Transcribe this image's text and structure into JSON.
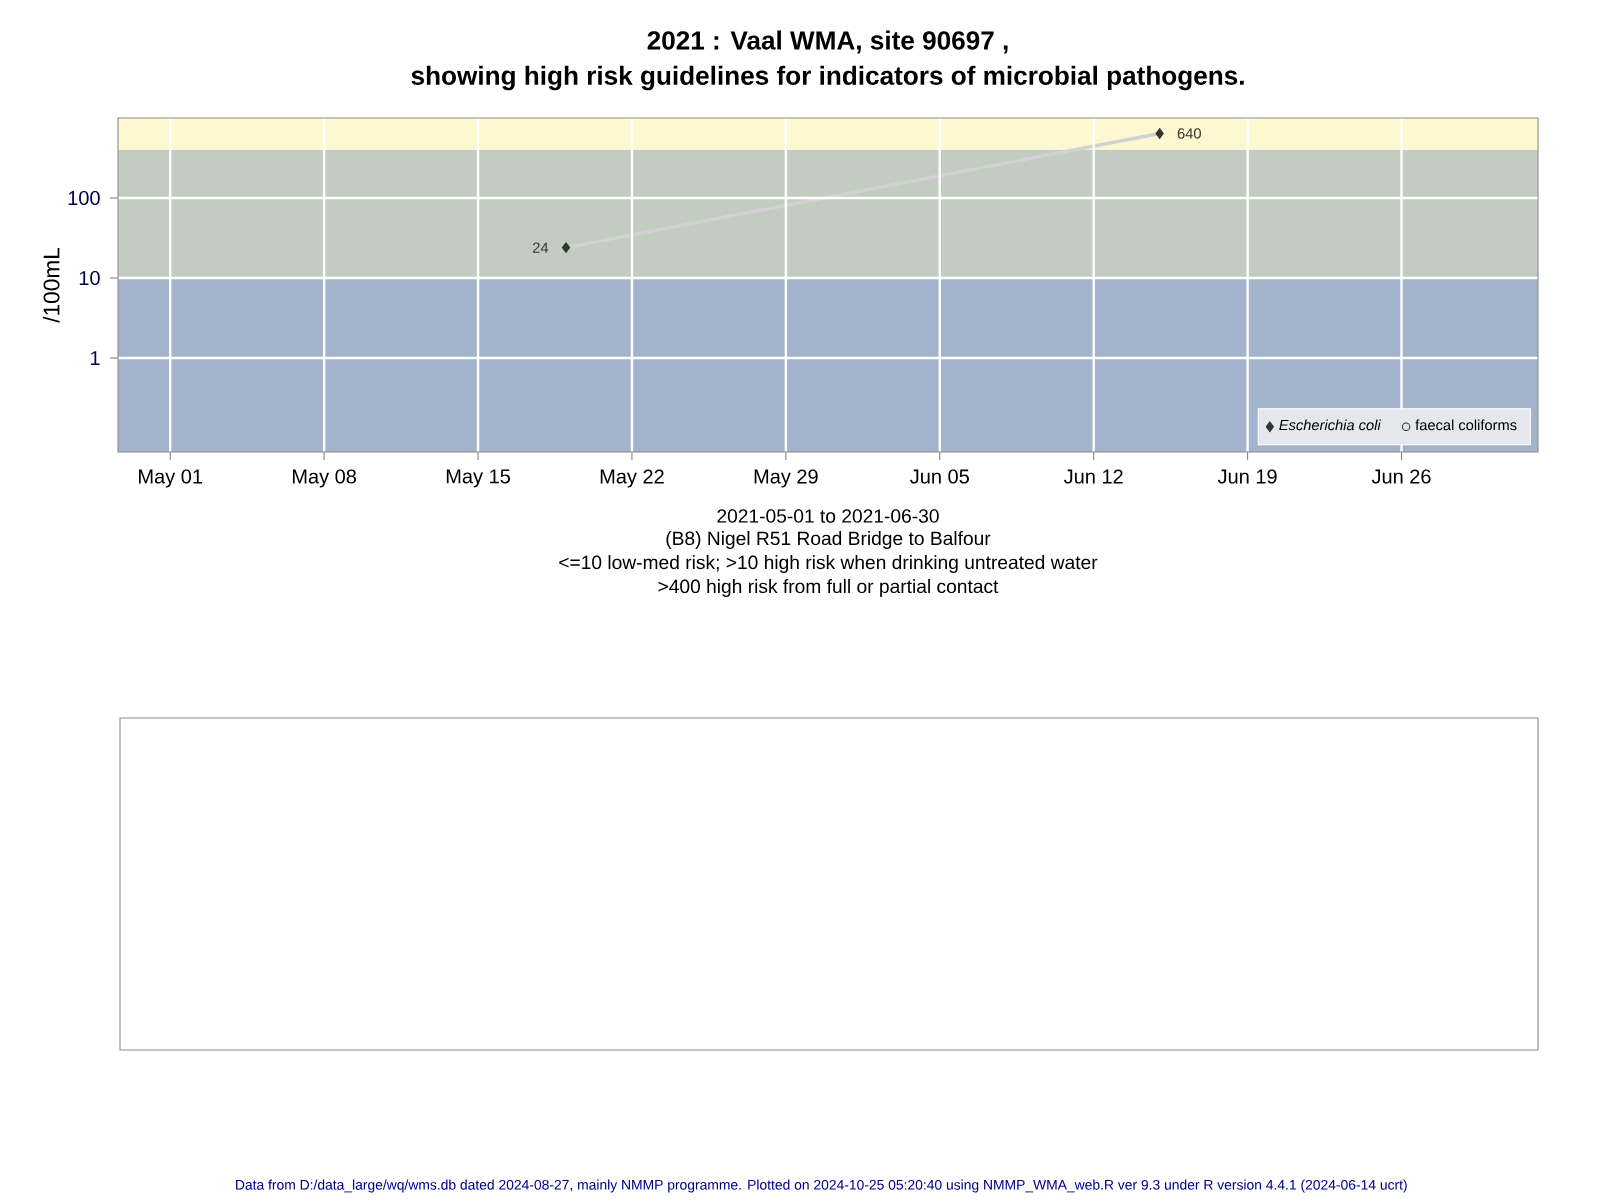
{
  "chart_data": {
    "type": "line",
    "title": "2021 : Vaal WMA, site 90697 ,",
    "subtitle": "showing high risk guidelines for indicators of microbial pathogens.",
    "ylabel": "/100mL",
    "xlabel": "2021-05-01 to 2021-06-30",
    "annotations": [
      "(B8) Nigel R51 Road Bridge to Balfour",
      "<=10 low-med risk; >10 high risk when drinking untreated water",
      ">400 high risk from full or partial contact",
      "Data from D:/data_large/wq/wms.db dated 2024-08-27, mainly NMMP programme. Plotted on 2024-10-25 05:20:40 using NMMP_WMA_web.R ver 9.3 under R version 4.4.1 (2024-06-14 ucrt)"
    ],
    "x": [
      "2021-05-19",
      "2021-06-15"
    ],
    "series": [
      {
        "name": "*Escherichia coli*",
        "color": "#333333",
        "marker": "diamond",
        "values": [
          24,
          640
        ]
      },
      {
        "name": "faecal coliforms",
        "color": "#333333",
        "marker": "circle",
        "values": [
          null,
          null
        ]
      }
    ],
    "xlim": [
      "2021-04-28T15:00",
      "2021-07-02T05:00"
    ],
    "xticks": [
      {
        "value": "2021-05-01",
        "label": "May 01"
      },
      {
        "value": "2021-05-08",
        "label": "May 08"
      },
      {
        "value": "2021-05-15",
        "label": "May 15"
      },
      {
        "value": "2021-05-22",
        "label": "May 22"
      },
      {
        "value": "2021-05-29",
        "label": "May 29"
      },
      {
        "value": "2021-06-05",
        "label": "Jun 05"
      },
      {
        "value": "2021-06-12",
        "label": "Jun 12"
      },
      {
        "value": "2021-06-19",
        "label": "Jun 19"
      },
      {
        "value": "2021-06-26",
        "label": "Jun 26"
      }
    ],
    "ylim": [
      0.067,
      1000
    ],
    "yticks": [
      1,
      10,
      100
    ],
    "log": "y",
    "grid": true,
    "legend": "bottom right",
    "data_labels": true,
    "line_style": "solid",
    "bands": [
      {
        "axis": "y",
        "from": 0.067,
        "to": 10,
        "color": "#a2b3cb"
      },
      {
        "axis": "y",
        "from": 10,
        "to": 400,
        "color": "#c2ccc0"
      },
      {
        "axis": "y",
        "from": 400,
        "to": 1000,
        "color": "#fef8d0"
      }
    ]
  }
}
